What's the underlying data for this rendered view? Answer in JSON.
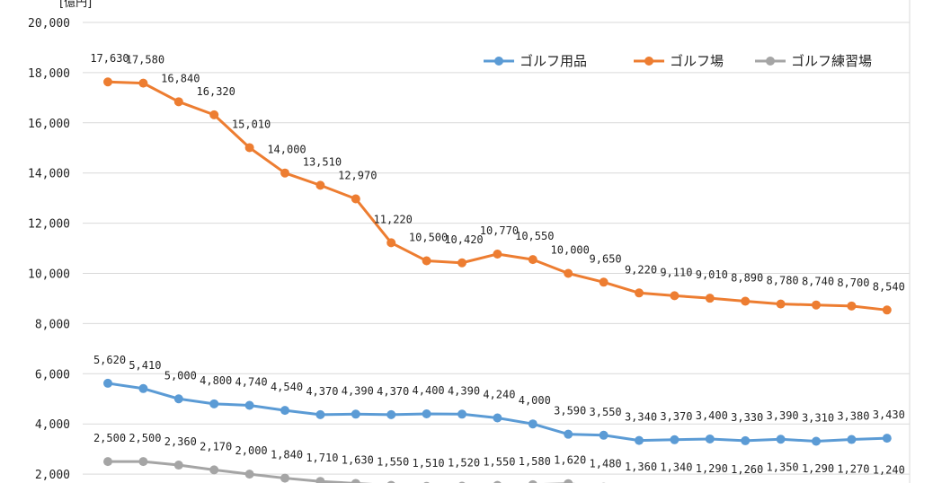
{
  "chart_data": {
    "type": "line",
    "unit_label": "[億円]",
    "ylim": [
      0,
      20000
    ],
    "y_ticks": [
      "2,000",
      "4,000",
      "6,000",
      "8,000",
      "10,000",
      "12,000",
      "14,000",
      "16,000",
      "18,000",
      "20,000"
    ],
    "grid": true,
    "legend_position": "top-right",
    "series": [
      {
        "name": "ゴルフ用品",
        "color": "#5b9bd5",
        "values": [
          5620,
          5410,
          5000,
          4800,
          4740,
          4540,
          4370,
          4390,
          4370,
          4400,
          4390,
          4240,
          4000,
          3590,
          3550,
          3340,
          3370,
          3400,
          3330,
          3390,
          3310,
          3380,
          3430
        ],
        "labels": [
          "5,620",
          "5,410",
          "5,000",
          "4,800",
          "4,740",
          "4,540",
          "4,370",
          "4,390",
          "4,370",
          "4,400",
          "4,390",
          "4,240",
          "4,000",
          "3,590",
          "3,550",
          "3,340",
          "3,370",
          "3,400",
          "3,330",
          "3,390",
          "3,310",
          "3,380",
          "3,430"
        ]
      },
      {
        "name": "ゴルフ場",
        "color": "#ed7d31",
        "values": [
          17630,
          17580,
          16840,
          16320,
          15010,
          14000,
          13510,
          12970,
          11220,
          10500,
          10420,
          10770,
          10550,
          10000,
          9650,
          9220,
          9110,
          9010,
          8890,
          8780,
          8740,
          8700,
          8540
        ],
        "labels": [
          "17,630",
          "17,580",
          "16,840",
          "16,320",
          "15,010",
          "14,000",
          "13,510",
          "12,970",
          "11,220",
          "10,500",
          "10,420",
          "10,770",
          "10,550",
          "10,000",
          "9,650",
          "9,220",
          "9,110",
          "9,010",
          "8,890",
          "8,780",
          "8,740",
          "8,700",
          "8,540"
        ]
      },
      {
        "name": "ゴルフ練習場",
        "color": "#a5a5a5",
        "values": [
          2500,
          2500,
          2360,
          2170,
          2000,
          1840,
          1710,
          1630,
          1550,
          1510,
          1520,
          1550,
          1580,
          1620,
          1480,
          1360,
          1340,
          1290,
          1260,
          1350,
          1290,
          1270,
          1240
        ],
        "labels": [
          "2,500",
          "2,500",
          "2,360",
          "2,170",
          "2,000",
          "1,840",
          "1,710",
          "1,630",
          "1,550",
          "1,510",
          "1,520",
          "1,550",
          "1,580",
          "1,620",
          "1,480",
          "1,360",
          "1,340",
          "1,290",
          "1,260",
          "1,350",
          "1,290",
          "1,270",
          "1,240"
        ]
      }
    ]
  }
}
